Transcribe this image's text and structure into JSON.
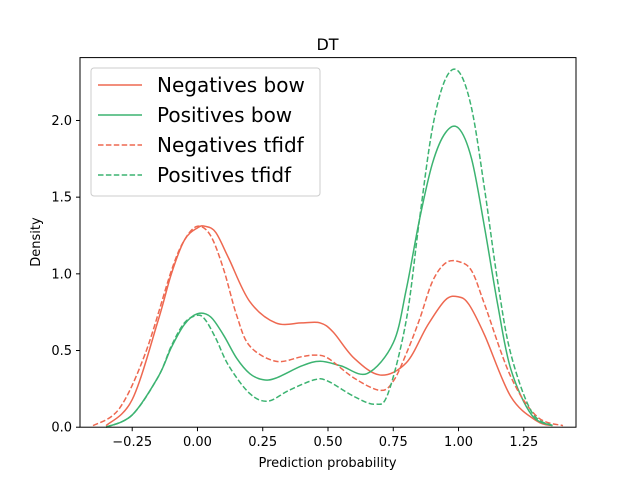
{
  "chart_data": {
    "type": "line",
    "title": "DT",
    "xlabel": "Prediction probability",
    "ylabel": "Density",
    "xlim": [
      -0.45,
      1.45
    ],
    "ylim": [
      0,
      2.41
    ],
    "xticks": [
      "−0.25",
      "0.00",
      "0.25",
      "0.50",
      "0.75",
      "1.00",
      "1.25"
    ],
    "xtick_values": [
      -0.25,
      0.0,
      0.25,
      0.5,
      0.75,
      1.0,
      1.25
    ],
    "yticks": [
      "0.0",
      "0.5",
      "1.0",
      "1.5",
      "2.0"
    ],
    "ytick_values": [
      0.0,
      0.5,
      1.0,
      1.5,
      2.0
    ],
    "grid": false,
    "legend_position": "top-left",
    "series": [
      {
        "name": "Negatives bow",
        "color": "#ee6850",
        "style": "solid",
        "x": [
          -0.35,
          -0.25,
          -0.15,
          -0.1,
          -0.05,
          0.0,
          0.03,
          0.07,
          0.12,
          0.2,
          0.3,
          0.4,
          0.47,
          0.52,
          0.6,
          0.7,
          0.8,
          0.88,
          0.95,
          1.0,
          1.04,
          1.1,
          1.2,
          1.3,
          1.36
        ],
        "y": [
          0.01,
          0.18,
          0.7,
          1.0,
          1.22,
          1.3,
          1.31,
          1.27,
          1.1,
          0.82,
          0.68,
          0.68,
          0.68,
          0.62,
          0.45,
          0.34,
          0.42,
          0.66,
          0.83,
          0.85,
          0.8,
          0.6,
          0.2,
          0.04,
          0.01
        ]
      },
      {
        "name": "Positives bow",
        "color": "#3cb371",
        "style": "solid",
        "x": [
          -0.35,
          -0.25,
          -0.15,
          -0.1,
          -0.05,
          0.0,
          0.05,
          0.1,
          0.15,
          0.2,
          0.25,
          0.3,
          0.4,
          0.47,
          0.55,
          0.65,
          0.75,
          0.8,
          0.85,
          0.9,
          0.95,
          1.0,
          1.05,
          1.1,
          1.15,
          1.2,
          1.28,
          1.36
        ],
        "y": [
          0.0,
          0.08,
          0.33,
          0.52,
          0.67,
          0.74,
          0.72,
          0.6,
          0.45,
          0.35,
          0.31,
          0.32,
          0.4,
          0.43,
          0.4,
          0.35,
          0.55,
          0.9,
          1.35,
          1.72,
          1.92,
          1.95,
          1.75,
          1.3,
          0.8,
          0.38,
          0.08,
          0.01
        ]
      },
      {
        "name": "Negatives tfidf",
        "color": "#ee6850",
        "style": "dashed",
        "x": [
          -0.4,
          -0.3,
          -0.2,
          -0.1,
          -0.05,
          0.0,
          0.05,
          0.1,
          0.15,
          0.2,
          0.3,
          0.4,
          0.45,
          0.5,
          0.6,
          0.7,
          0.75,
          0.8,
          0.85,
          0.9,
          0.95,
          1.0,
          1.05,
          1.1,
          1.2,
          1.3,
          1.4
        ],
        "y": [
          0.01,
          0.12,
          0.48,
          1.02,
          1.22,
          1.31,
          1.25,
          1.03,
          0.73,
          0.53,
          0.43,
          0.46,
          0.47,
          0.45,
          0.32,
          0.24,
          0.3,
          0.48,
          0.7,
          0.95,
          1.07,
          1.08,
          1.02,
          0.8,
          0.33,
          0.07,
          0.01
        ]
      },
      {
        "name": "Positives tfidf",
        "color": "#3cb371",
        "style": "dashed",
        "x": [
          -0.35,
          -0.25,
          -0.15,
          -0.1,
          -0.05,
          0.0,
          0.03,
          0.07,
          0.12,
          0.2,
          0.27,
          0.35,
          0.45,
          0.5,
          0.6,
          0.68,
          0.73,
          0.8,
          0.85,
          0.9,
          0.95,
          1.0,
          1.05,
          1.1,
          1.15,
          1.2,
          1.28,
          1.36
        ],
        "y": [
          0.0,
          0.08,
          0.33,
          0.53,
          0.68,
          0.73,
          0.7,
          0.58,
          0.4,
          0.22,
          0.17,
          0.24,
          0.31,
          0.3,
          0.2,
          0.15,
          0.22,
          0.7,
          1.35,
          1.95,
          2.27,
          2.32,
          2.08,
          1.55,
          0.95,
          0.48,
          0.1,
          0.01
        ]
      }
    ]
  }
}
